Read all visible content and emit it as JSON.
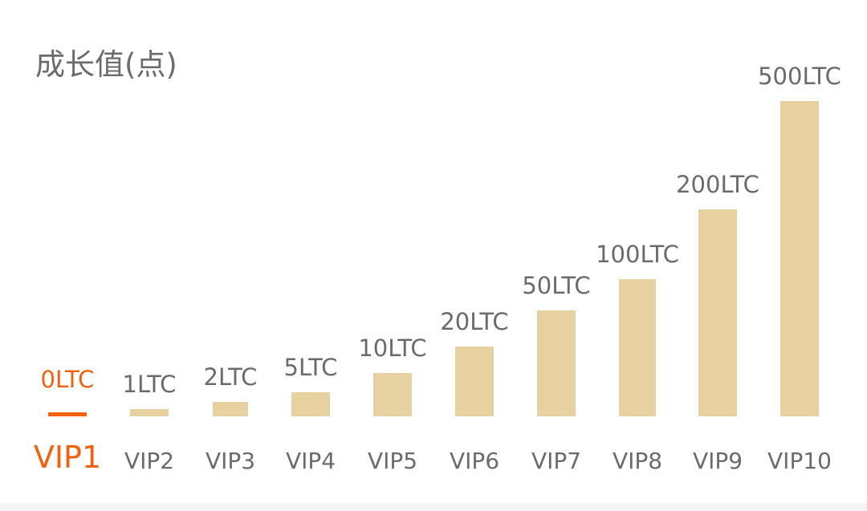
{
  "chart_data": {
    "type": "bar",
    "ylabel": "成长值(点)",
    "categories": [
      "VIP1",
      "VIP2",
      "VIP3",
      "VIP4",
      "VIP5",
      "VIP6",
      "VIP7",
      "VIP8",
      "VIP9",
      "VIP10"
    ],
    "values": [
      0,
      1,
      2,
      5,
      10,
      20,
      50,
      100,
      200,
      500
    ],
    "value_labels": [
      "0LTC",
      "1LTC",
      "2LTC",
      "5LTC",
      "10LTC",
      "20LTC",
      "50LTC",
      "100LTC",
      "200LTC",
      "500LTC"
    ],
    "scale": "non-linear (bars grow with level)",
    "active_category": "VIP1",
    "grid": false,
    "legend": "none",
    "colors": {
      "bar": "#e8d1a0",
      "active": "#f2610f",
      "text": "#6b6b6b"
    }
  }
}
